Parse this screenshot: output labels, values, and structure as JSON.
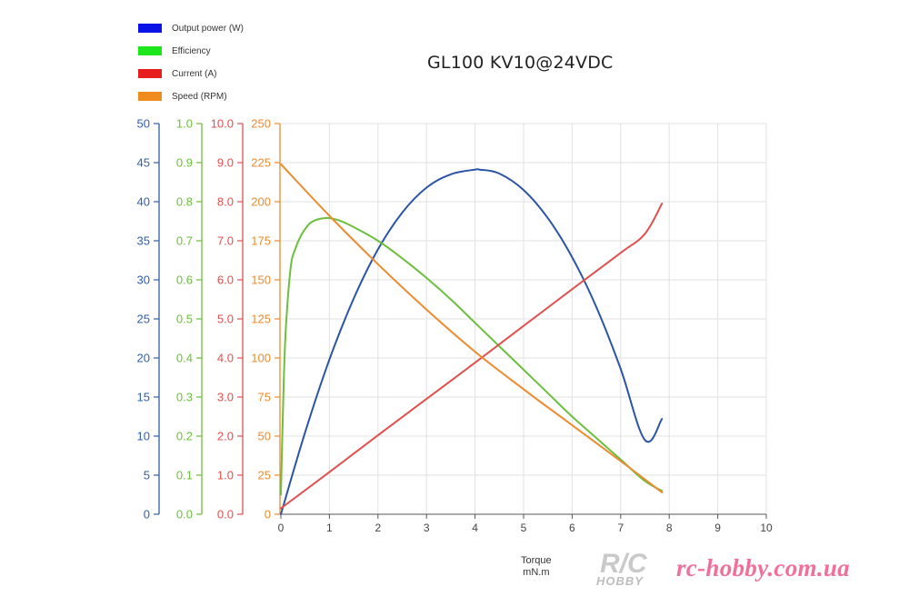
{
  "chart_data": {
    "type": "line",
    "title": "GL100 KV10@24VDC",
    "xlabel": [
      "Torque",
      "mN.m"
    ],
    "xlim": [
      0,
      10
    ],
    "xticks": [
      0,
      1,
      2,
      3,
      4,
      5,
      6,
      7,
      8,
      9,
      10
    ],
    "grid": true,
    "legend_position": "top-left",
    "y_axes": [
      {
        "id": "power",
        "ylim": [
          0,
          50
        ],
        "ticks": [
          "0",
          "5",
          "10",
          "15",
          "20",
          "25",
          "30",
          "35",
          "40",
          "45",
          "50"
        ],
        "color": "#2e5fa8"
      },
      {
        "id": "efficiency",
        "ylim": [
          0,
          1.0
        ],
        "ticks": [
          "0.0",
          "0.1",
          "0.2",
          "0.3",
          "0.4",
          "0.5",
          "0.6",
          "0.7",
          "0.8",
          "0.9",
          "1.0"
        ],
        "color": "#6cbf3c"
      },
      {
        "id": "current",
        "ylim": [
          0,
          10.0
        ],
        "ticks": [
          "0.0",
          "1.0",
          "2.0",
          "3.0",
          "4.0",
          "5.0",
          "6.0",
          "7.0",
          "8.0",
          "9.0",
          "10.0"
        ],
        "color": "#e0504f"
      },
      {
        "id": "speed",
        "ylim": [
          0,
          250
        ],
        "ticks": [
          "0",
          "25",
          "50",
          "75",
          "100",
          "125",
          "150",
          "175",
          "200",
          "225",
          "250"
        ],
        "color": "#ec8a2c"
      }
    ],
    "series": [
      {
        "name": "Output power (W)",
        "axis": "power",
        "legend_color": "#0a14e6",
        "line_color": "#2a55a5",
        "x": [
          0,
          0.5,
          1,
          1.5,
          2,
          2.5,
          3,
          3.5,
          4,
          4.1,
          4.5,
          5,
          5.5,
          6,
          6.5,
          7,
          7.5,
          7.85
        ],
        "y": [
          0,
          10.5,
          19.8,
          27.6,
          33.9,
          38.6,
          41.8,
          43.5,
          44.1,
          44.1,
          43.6,
          41.5,
          37.9,
          32.9,
          26.5,
          18.6,
          9.5,
          12.2
        ]
      },
      {
        "name": "Efficiency",
        "axis": "efficiency",
        "legend_color": "#1ee61e",
        "line_color": "#6cbf3c",
        "x": [
          0,
          0.05,
          0.1,
          0.2,
          0.3,
          0.4,
          0.5,
          0.6,
          0.7,
          0.8,
          0.9,
          1.0,
          1.2,
          1.5,
          2,
          2.5,
          3,
          3.5,
          4,
          4.5,
          5,
          5.5,
          6,
          6.5,
          7,
          7.5,
          7.85
        ],
        "y": [
          0.05,
          0.3,
          0.47,
          0.63,
          0.68,
          0.71,
          0.73,
          0.745,
          0.752,
          0.756,
          0.758,
          0.758,
          0.752,
          0.735,
          0.7,
          0.655,
          0.605,
          0.55,
          0.49,
          0.43,
          0.37,
          0.31,
          0.25,
          0.195,
          0.14,
          0.085,
          0.06
        ]
      },
      {
        "name": "Current (A)",
        "axis": "current",
        "legend_color": "#e61e1e",
        "line_color": "#e0504f",
        "x": [
          0,
          1,
          2,
          3,
          4,
          5,
          6,
          7,
          7.5,
          7.85
        ],
        "y": [
          0.15,
          1.08,
          2.02,
          2.95,
          3.88,
          4.82,
          5.76,
          6.69,
          7.18,
          7.95
        ]
      },
      {
        "name": "Speed (RPM)",
        "axis": "speed",
        "legend_color": "#f08c1e",
        "line_color": "#ec8a2c",
        "x": [
          0,
          1,
          2,
          3,
          4,
          5,
          6,
          7,
          7.85
        ],
        "y": [
          224,
          191,
          160,
          131,
          104,
          80,
          57,
          34,
          14
        ]
      }
    ]
  },
  "watermark": {
    "logo_text": "R/C",
    "logo_sub": "HOBBY",
    "site": "rc-hobby.com.ua"
  }
}
